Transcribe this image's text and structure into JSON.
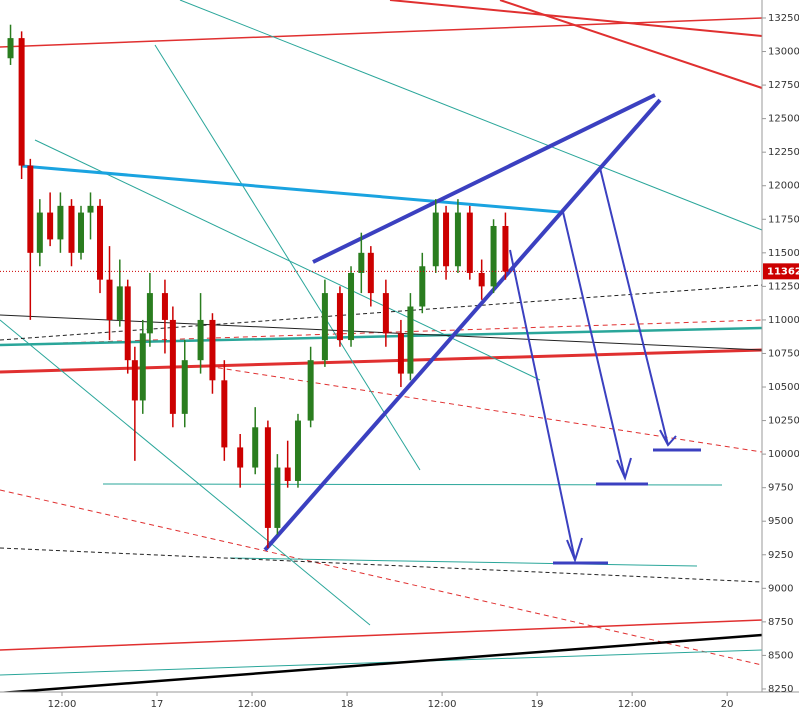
{
  "chart_data": {
    "type": "candlestick",
    "x": [
      5.5,
      6.9,
      8.0,
      9.2,
      10.5,
      11.8,
      13.2,
      14.4,
      15.6,
      16.8,
      18.0,
      19.3,
      20.3,
      21.2,
      22.2,
      23.1,
      25.0,
      26.0,
      27.5,
      29.5,
      31.0,
      32.5,
      34.5,
      36.4,
      38.0,
      39.2,
      40.5,
      41.8,
      43.4,
      45.2,
      47.1,
      48.5,
      49.8,
      51.0,
      52.9,
      54.8,
      56.0,
      57.5,
      59.2,
      60.5,
      62.0,
      63.5,
      65.0,
      66.5,
      68.0
    ],
    "open": [
      12950,
      13100,
      12150,
      11500,
      11800,
      11600,
      11850,
      11500,
      11800,
      11850,
      11300,
      11000,
      11250,
      10700,
      10400,
      10900,
      11200,
      11000,
      10300,
      10700,
      11000,
      10550,
      10050,
      9900,
      10200,
      9450,
      9900,
      9800,
      10250,
      10700,
      11200,
      10850,
      11350,
      11500,
      11200,
      10900,
      10600,
      11100,
      11400,
      11800,
      11400,
      11800,
      11350,
      11250,
      11700
    ],
    "high": [
      13200,
      13150,
      12200,
      11900,
      11950,
      11950,
      11900,
      11850,
      11950,
      11900,
      11550,
      11450,
      11300,
      10800,
      11000,
      11350,
      11300,
      11100,
      10850,
      11200,
      11050,
      10700,
      10150,
      10350,
      10250,
      10000,
      10100,
      10300,
      10800,
      11300,
      11250,
      11400,
      11650,
      11550,
      11300,
      11000,
      11200,
      11500,
      11900,
      11850,
      11900,
      11850,
      11450,
      11750,
      11800
    ],
    "low": [
      12900,
      12050,
      11000,
      11400,
      11550,
      11500,
      11400,
      11450,
      11600,
      11200,
      10850,
      10950,
      10600,
      9950,
      10300,
      10800,
      10750,
      10200,
      10200,
      10600,
      10450,
      9950,
      9750,
      9850,
      9300,
      9400,
      9750,
      9750,
      10200,
      10650,
      10800,
      10800,
      11200,
      11100,
      10800,
      10500,
      10550,
      11050,
      11350,
      11300,
      11350,
      11300,
      11150,
      11200,
      11300
    ],
    "close": [
      13100,
      12150,
      11500,
      11800,
      11600,
      11850,
      11500,
      11800,
      11850,
      11300,
      11000,
      11250,
      10700,
      10400,
      10900,
      11200,
      11000,
      10300,
      10700,
      11000,
      10550,
      10050,
      9900,
      10200,
      9450,
      9900,
      9800,
      10250,
      10700,
      11200,
      10850,
      11350,
      11500,
      11200,
      10900,
      10600,
      11100,
      11400,
      11800,
      11400,
      11800,
      11350,
      11250,
      11700,
      11360
    ],
    "up_color": "#2a7d1f",
    "down_color": "#cc0000",
    "last_price": 11362,
    "xlim": [
      4.17,
      100.4
    ],
    "xticks": [
      {
        "value": 12,
        "label": "12:00"
      },
      {
        "value": 24,
        "label": "17"
      },
      {
        "value": 36,
        "label": "12:00"
      },
      {
        "value": 48,
        "label": "18"
      },
      {
        "value": 60,
        "label": "12:00"
      },
      {
        "value": 72,
        "label": "19"
      },
      {
        "value": 84,
        "label": "12:00"
      },
      {
        "value": 96,
        "label": "20"
      }
    ],
    "ylim": [
      8056,
      13384
    ],
    "yticks": [
      8250,
      8500,
      8750,
      9000,
      9250,
      9500,
      9750,
      10000,
      10250,
      10500,
      10750,
      11000,
      11250,
      11500,
      11750,
      12000,
      12250,
      12500,
      12750,
      13000,
      13250
    ]
  }
}
